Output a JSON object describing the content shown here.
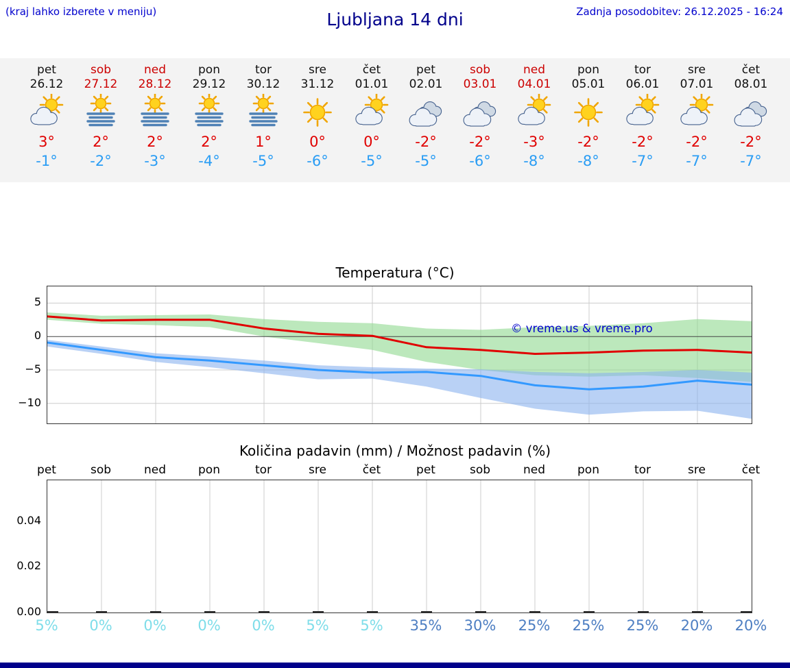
{
  "header": {
    "left_note": "(kraj lahko izberete v meniju)",
    "title": "Ljubljana 14 dni",
    "last_update": "Zadnja posodobitev: 26.12.2025 - 16:24"
  },
  "colors": {
    "link_blue": "#0000cd",
    "title_blue": "#00008b",
    "weekend_red": "#cc0000",
    "tmax_red": "#e00000",
    "tmin_blue": "#2a9df4",
    "strip_bg": "#f3f3f3",
    "footer_bar": "#00008b",
    "grid_gray": "#cccccc",
    "watermark_blue": "#0000cc"
  },
  "forecast": {
    "days": [
      {
        "day": "pet",
        "date": "26.12",
        "weekend": false,
        "icon": "sun-cloud",
        "tmax": "3°",
        "tmin": "-1°"
      },
      {
        "day": "sob",
        "date": "27.12",
        "weekend": true,
        "icon": "sun-fog",
        "tmax": "2°",
        "tmin": "-2°"
      },
      {
        "day": "ned",
        "date": "28.12",
        "weekend": true,
        "icon": "sun-fog",
        "tmax": "2°",
        "tmin": "-3°"
      },
      {
        "day": "pon",
        "date": "29.12",
        "weekend": false,
        "icon": "sun-fog",
        "tmax": "2°",
        "tmin": "-4°"
      },
      {
        "day": "tor",
        "date": "30.12",
        "weekend": false,
        "icon": "sun-fog",
        "tmax": "1°",
        "tmin": "-5°"
      },
      {
        "day": "sre",
        "date": "31.12",
        "weekend": false,
        "icon": "sun",
        "tmax": "0°",
        "tmin": "-6°"
      },
      {
        "day": "čet",
        "date": "01.01",
        "weekend": false,
        "icon": "sun-cloud",
        "tmax": "0°",
        "tmin": "-5°"
      },
      {
        "day": "pet",
        "date": "02.01",
        "weekend": false,
        "icon": "cloud",
        "tmax": "-2°",
        "tmin": "-5°"
      },
      {
        "day": "sob",
        "date": "03.01",
        "weekend": true,
        "icon": "cloud",
        "tmax": "-2°",
        "tmin": "-6°"
      },
      {
        "day": "ned",
        "date": "04.01",
        "weekend": true,
        "icon": "sun-cloud",
        "tmax": "-3°",
        "tmin": "-8°"
      },
      {
        "day": "pon",
        "date": "05.01",
        "weekend": false,
        "icon": "sun",
        "tmax": "-2°",
        "tmin": "-8°"
      },
      {
        "day": "tor",
        "date": "06.01",
        "weekend": false,
        "icon": "sun-cloud",
        "tmax": "-2°",
        "tmin": "-7°"
      },
      {
        "day": "sre",
        "date": "07.01",
        "weekend": false,
        "icon": "sun-cloud",
        "tmax": "-2°",
        "tmin": "-7°"
      },
      {
        "day": "čet",
        "date": "08.01",
        "weekend": false,
        "icon": "cloud",
        "tmax": "-2°",
        "tmin": "-7°"
      }
    ]
  },
  "chart_data": [
    {
      "type": "line",
      "title": "Temperatura (°C)",
      "categories": [
        "26.12",
        "27.12",
        "28.12",
        "29.12",
        "30.12",
        "31.12",
        "01.01",
        "02.01",
        "03.01",
        "04.01",
        "05.01",
        "06.01",
        "07.01",
        "08.01"
      ],
      "series": [
        {
          "name": "max temperature",
          "color": "#e00000",
          "values": [
            3.0,
            2.4,
            2.5,
            2.5,
            1.2,
            0.4,
            0.1,
            -1.6,
            -2.0,
            -2.6,
            -2.4,
            -2.1,
            -2.0,
            -2.4
          ]
        },
        {
          "name": "min temperature",
          "color": "#3399ff",
          "values": [
            -0.9,
            -2.0,
            -3.1,
            -3.6,
            -4.3,
            -5.0,
            -5.4,
            -5.3,
            -5.9,
            -7.3,
            -7.9,
            -7.5,
            -6.6,
            -7.2
          ]
        }
      ],
      "bands": [
        {
          "name": "max range",
          "color": "#8fd88f",
          "upper": [
            3.6,
            3.1,
            3.2,
            3.3,
            2.6,
            2.2,
            2.0,
            1.2,
            1.0,
            1.4,
            1.6,
            2.0,
            2.6,
            2.3
          ],
          "lower": [
            2.5,
            1.9,
            1.7,
            1.4,
            0.0,
            -1.0,
            -2.0,
            -3.8,
            -5.0,
            -5.8,
            -6.0,
            -5.8,
            -6.2,
            -6.8
          ]
        },
        {
          "name": "min range",
          "color": "#8ab2ee",
          "upper": [
            -0.5,
            -1.5,
            -2.5,
            -3.0,
            -3.6,
            -4.3,
            -4.6,
            -4.8,
            -4.9,
            -5.3,
            -5.5,
            -5.3,
            -5.0,
            -5.4
          ],
          "lower": [
            -1.5,
            -2.6,
            -3.8,
            -4.6,
            -5.5,
            -6.4,
            -6.3,
            -7.5,
            -9.2,
            -10.8,
            -11.7,
            -11.2,
            -11.1,
            -12.3
          ]
        }
      ],
      "ylim": [
        -13,
        7.5
      ],
      "yticks": [
        5,
        0,
        -5,
        -10
      ],
      "ytick_labels": [
        "5",
        "0",
        "−5",
        "−10"
      ],
      "grid": "on",
      "legend": "none",
      "watermark": "© vreme.us & vreme.pro"
    },
    {
      "type": "bar",
      "title": "Količina padavin (mm) / Možnost padavin (%)",
      "categories": [
        "pet",
        "sob",
        "ned",
        "pon",
        "tor",
        "sre",
        "čet",
        "pet",
        "sob",
        "ned",
        "pon",
        "tor",
        "sre",
        "čet"
      ],
      "values": [
        0,
        0,
        0,
        0,
        0,
        0,
        0,
        0,
        0,
        0,
        0,
        0,
        0,
        0
      ],
      "ylim": [
        0,
        0.058
      ],
      "yticks": [
        0,
        0.02,
        0.04
      ],
      "ytick_labels": [
        "0.00",
        "0.02",
        "0.04"
      ],
      "grid": "on",
      "probabilities": [
        {
          "label": "5%",
          "color": "#7edde9"
        },
        {
          "label": "0%",
          "color": "#7edde9"
        },
        {
          "label": "0%",
          "color": "#7edde9"
        },
        {
          "label": "0%",
          "color": "#7edde9"
        },
        {
          "label": "0%",
          "color": "#7edde9"
        },
        {
          "label": "5%",
          "color": "#7edde9"
        },
        {
          "label": "5%",
          "color": "#7edde9"
        },
        {
          "label": "35%",
          "color": "#4d7ec2"
        },
        {
          "label": "30%",
          "color": "#4d7ec2"
        },
        {
          "label": "25%",
          "color": "#4d7ec2"
        },
        {
          "label": "25%",
          "color": "#4d7ec2"
        },
        {
          "label": "25%",
          "color": "#4d7ec2"
        },
        {
          "label": "20%",
          "color": "#4d7ec2"
        },
        {
          "label": "20%",
          "color": "#4d7ec2"
        }
      ]
    }
  ]
}
